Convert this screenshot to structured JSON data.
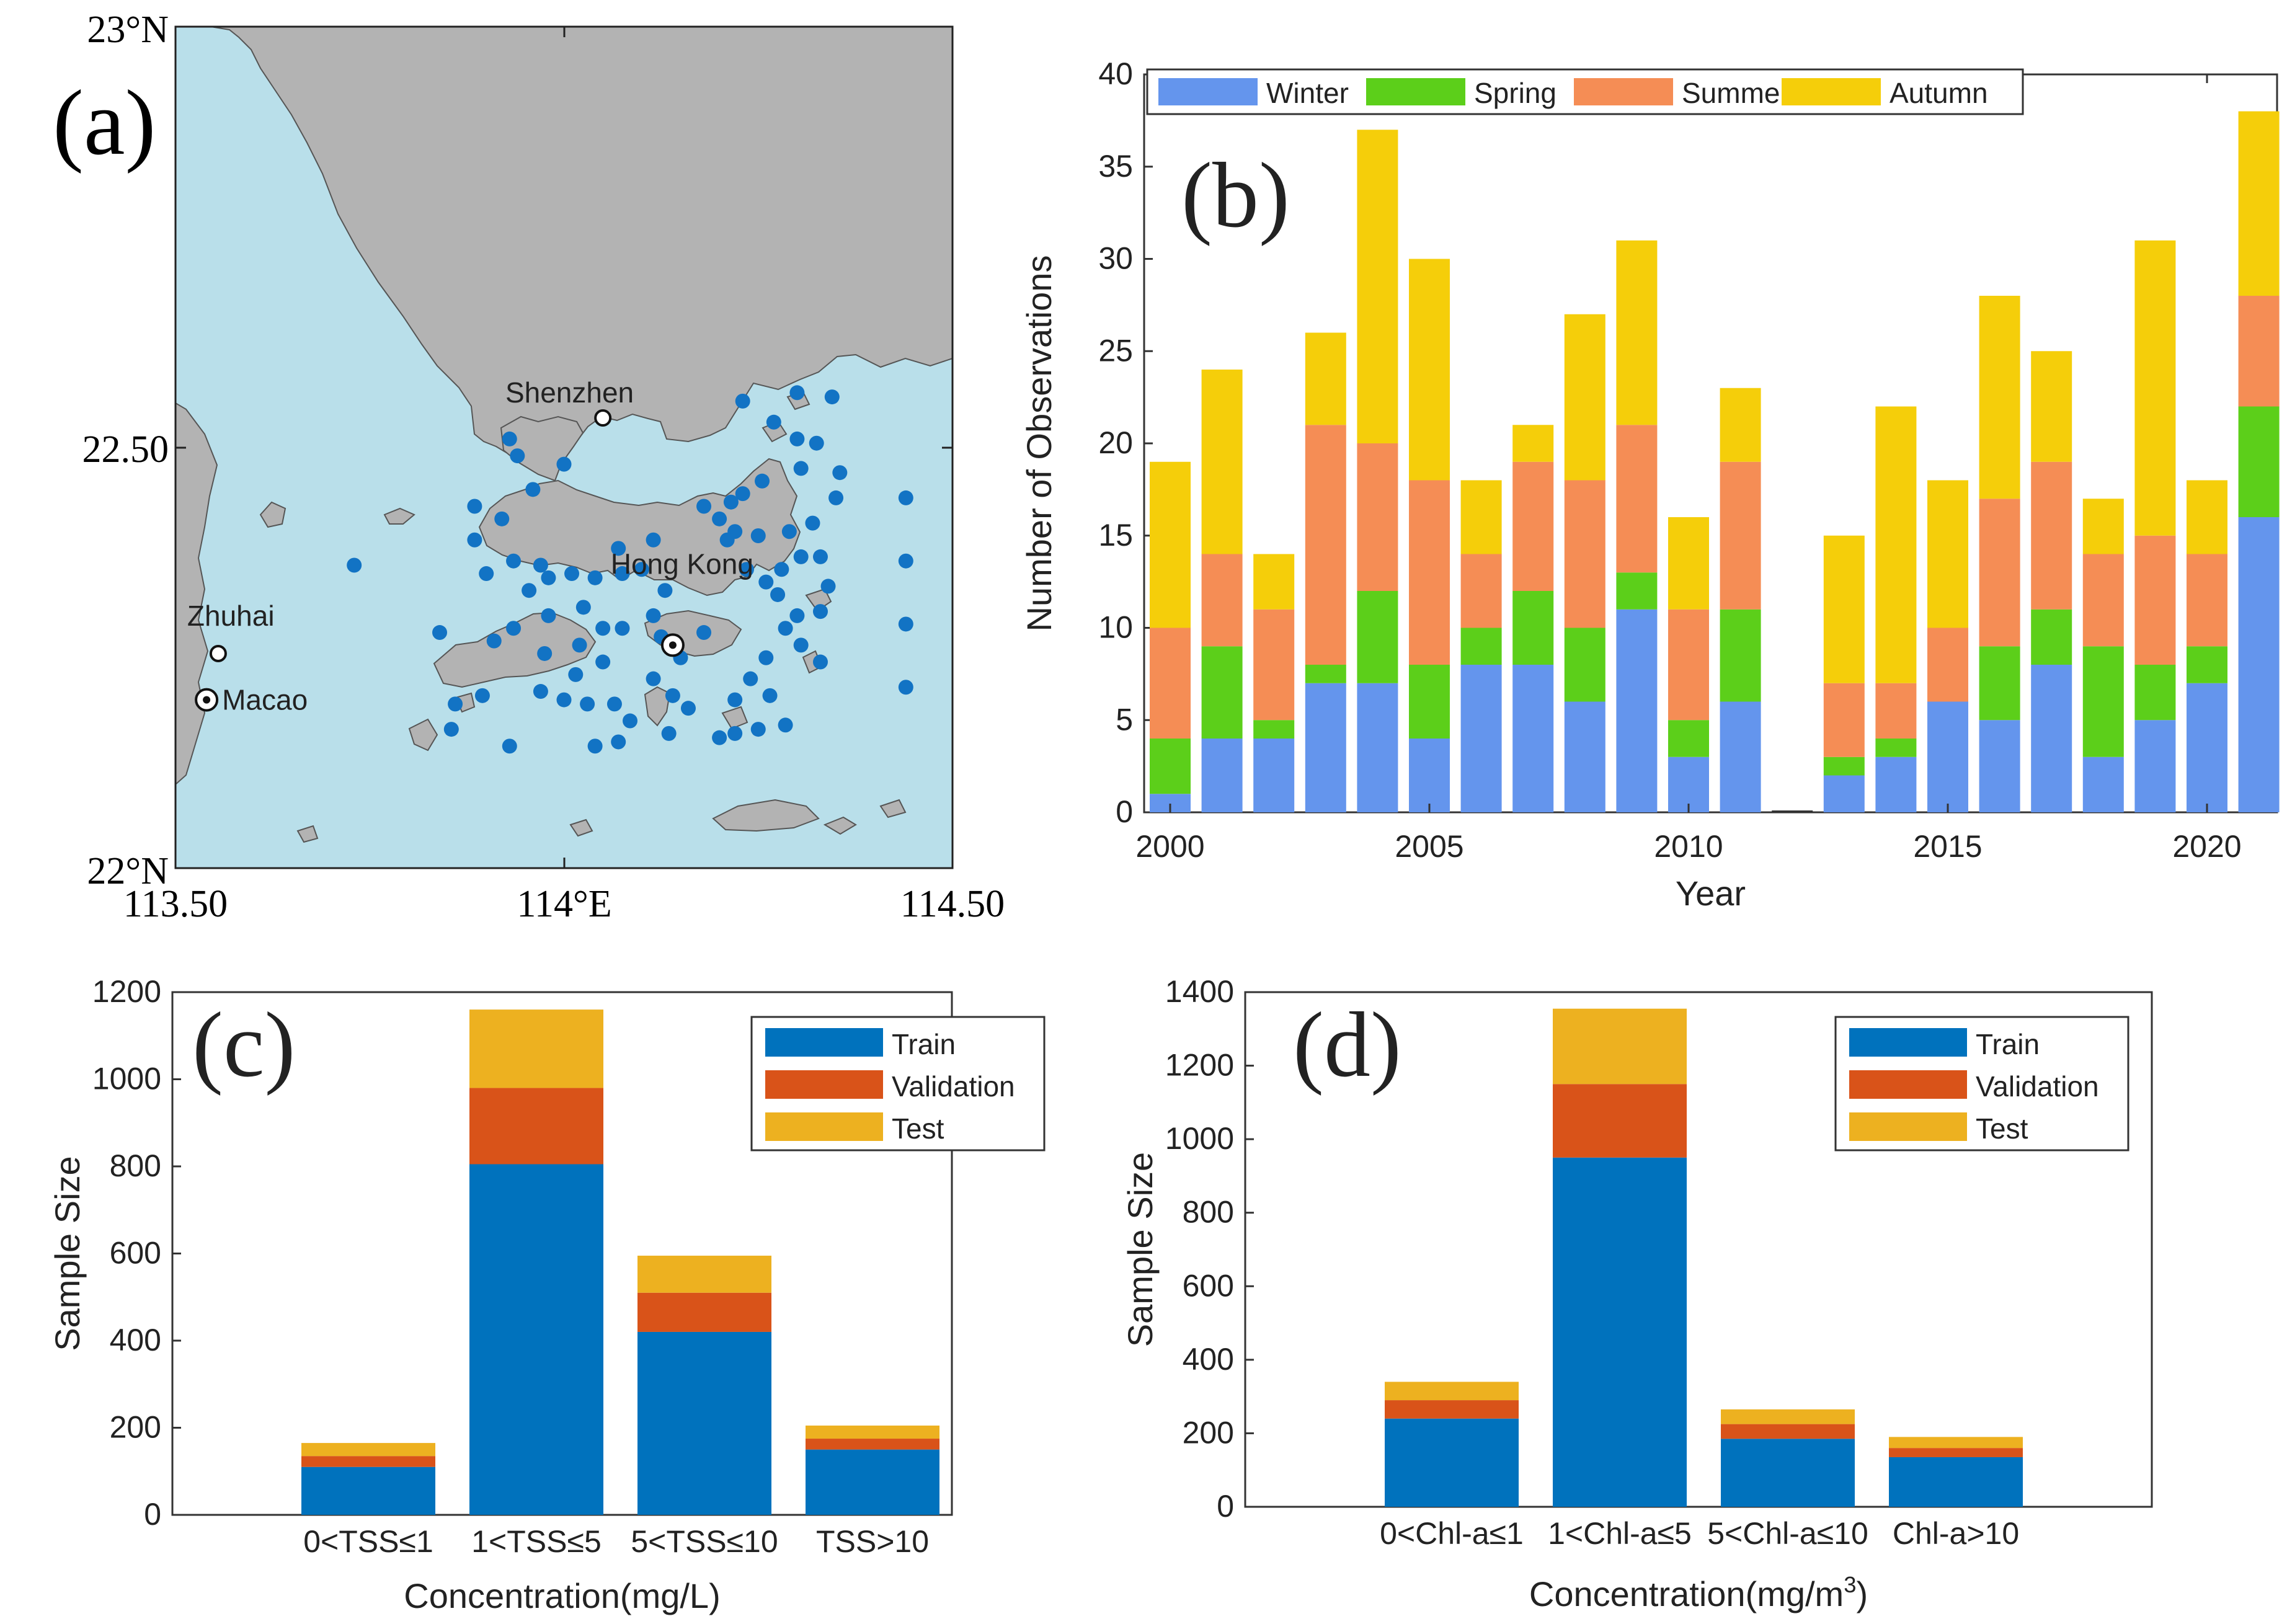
{
  "colors": {
    "winter": "#6495ED",
    "spring": "#5CCF1A",
    "summer": "#F58D55",
    "autumn": "#F5CE0A",
    "train": "#0072BD",
    "validation": "#D95319",
    "test": "#EDB120",
    "sea": "#B9DFEA",
    "land": "#B3B3B3",
    "station": "#1273C4"
  },
  "map": {
    "panel_label": "(a)",
    "lat_ticks": [
      "23°N",
      "22.50",
      "22°N"
    ],
    "lon_ticks": [
      "113.50",
      "114°E",
      "114.50"
    ],
    "lon_range": [
      113.5,
      114.5
    ],
    "lat_range": [
      22.0,
      23.0
    ],
    "cities": [
      {
        "name": "Shenzhen",
        "lon": 114.05,
        "lat": 22.535
      },
      {
        "name": "Hong Kong",
        "lon": 114.14,
        "lat": 22.265
      },
      {
        "name": "Zhuhai",
        "lon": 113.555,
        "lat": 22.255
      },
      {
        "name": "Macao",
        "lon": 113.54,
        "lat": 22.2
      }
    ],
    "stations": [
      [
        114.23,
        22.555
      ],
      [
        114.3,
        22.565
      ],
      [
        114.345,
        22.56
      ],
      [
        114.27,
        22.53
      ],
      [
        114.3,
        22.51
      ],
      [
        114.325,
        22.505
      ],
      [
        114.305,
        22.475
      ],
      [
        114.255,
        22.46
      ],
      [
        114.23,
        22.445
      ],
      [
        114.215,
        22.435
      ],
      [
        114.18,
        22.43
      ],
      [
        114.2,
        22.415
      ],
      [
        114.22,
        22.4
      ],
      [
        114.25,
        22.395
      ],
      [
        114.29,
        22.4
      ],
      [
        114.32,
        22.41
      ],
      [
        114.355,
        22.47
      ],
      [
        114.35,
        22.44
      ],
      [
        114.44,
        22.44
      ],
      [
        114.44,
        22.365
      ],
      [
        114.44,
        22.29
      ],
      [
        114.44,
        22.215
      ],
      [
        114.34,
        22.335
      ],
      [
        114.33,
        22.37
      ],
      [
        114.305,
        22.37
      ],
      [
        114.28,
        22.355
      ],
      [
        114.26,
        22.34
      ],
      [
        114.275,
        22.325
      ],
      [
        114.3,
        22.3
      ],
      [
        114.33,
        22.305
      ],
      [
        114.33,
        22.245
      ],
      [
        114.305,
        22.265
      ],
      [
        114.285,
        22.285
      ],
      [
        114.26,
        22.25
      ],
      [
        114.24,
        22.225
      ],
      [
        114.265,
        22.205
      ],
      [
        114.22,
        22.2
      ],
      [
        114.2,
        22.155
      ],
      [
        114.25,
        22.165
      ],
      [
        114.285,
        22.17
      ],
      [
        114.22,
        22.16
      ],
      [
        114.18,
        22.28
      ],
      [
        114.15,
        22.25
      ],
      [
        114.125,
        22.275
      ],
      [
        114.115,
        22.3
      ],
      [
        114.13,
        22.33
      ],
      [
        114.1,
        22.355
      ],
      [
        114.075,
        22.35
      ],
      [
        114.04,
        22.345
      ],
      [
        114.025,
        22.31
      ],
      [
        114.05,
        22.285
      ],
      [
        114.075,
        22.285
      ],
      [
        114.02,
        22.265
      ],
      [
        114.015,
        22.23
      ],
      [
        114.0,
        22.2
      ],
      [
        114.03,
        22.195
      ],
      [
        114.05,
        22.245
      ],
      [
        114.065,
        22.195
      ],
      [
        114.115,
        22.225
      ],
      [
        114.14,
        22.205
      ],
      [
        114.16,
        22.19
      ],
      [
        114.085,
        22.175
      ],
      [
        114.07,
        22.15
      ],
      [
        114.135,
        22.16
      ],
      [
        113.98,
        22.3
      ],
      [
        113.955,
        22.33
      ],
      [
        113.935,
        22.365
      ],
      [
        113.97,
        22.36
      ],
      [
        113.98,
        22.345
      ],
      [
        113.9,
        22.35
      ],
      [
        113.885,
        22.39
      ],
      [
        113.92,
        22.415
      ],
      [
        113.885,
        22.43
      ],
      [
        113.96,
        22.45
      ],
      [
        114.0,
        22.48
      ],
      [
        113.94,
        22.49
      ],
      [
        113.93,
        22.51
      ],
      [
        114.01,
        22.35
      ],
      [
        113.84,
        22.28
      ],
      [
        113.91,
        22.27
      ],
      [
        113.935,
        22.285
      ],
      [
        113.97,
        22.21
      ],
      [
        113.975,
        22.255
      ],
      [
        113.86,
        22.195
      ],
      [
        113.895,
        22.205
      ],
      [
        113.855,
        22.165
      ],
      [
        113.93,
        22.145
      ],
      [
        114.04,
        22.145
      ],
      [
        113.73,
        22.36
      ],
      [
        114.21,
        22.39
      ],
      [
        114.235,
        22.355
      ],
      [
        114.07,
        22.38
      ],
      [
        114.115,
        22.39
      ]
    ]
  },
  "chart_data": [
    {
      "panel": "(b)",
      "type": "bar",
      "stacked": true,
      "xlabel": "Year",
      "ylabel": "Number of Observations",
      "ylim": [
        0,
        40
      ],
      "yticks": [
        "0",
        "5",
        "10",
        "15",
        "20",
        "25",
        "30",
        "35",
        "40"
      ],
      "xticks": [
        "2000",
        "2005",
        "2010",
        "2015",
        "2020"
      ],
      "legend_position": "top",
      "categories": [
        "2000",
        "2001",
        "2002",
        "2003",
        "2004",
        "2005",
        "2006",
        "2007",
        "2008",
        "2009",
        "2010",
        "2011",
        "2012",
        "2013",
        "2014",
        "2015",
        "2016",
        "2017",
        "2018",
        "2019",
        "2020",
        "2021"
      ],
      "series": [
        {
          "name": "Winter",
          "values": [
            1,
            4,
            4,
            7,
            7,
            4,
            8,
            8,
            6,
            11,
            3,
            6,
            0,
            2,
            3,
            6,
            5,
            8,
            3,
            5,
            7,
            16
          ]
        },
        {
          "name": "Spring",
          "values": [
            3,
            5,
            1,
            1,
            5,
            4,
            2,
            4,
            4,
            2,
            2,
            5,
            0,
            1,
            1,
            0,
            4,
            3,
            6,
            3,
            2,
            6
          ]
        },
        {
          "name": "Summer",
          "values": [
            6,
            5,
            6,
            13,
            8,
            10,
            4,
            7,
            8,
            8,
            6,
            8,
            0,
            4,
            3,
            4,
            8,
            8,
            5,
            7,
            5,
            6
          ]
        },
        {
          "name": "Autumn",
          "values": [
            9,
            10,
            3,
            5,
            17,
            12,
            4,
            2,
            9,
            10,
            5,
            4,
            0,
            8,
            15,
            8,
            11,
            6,
            3,
            16,
            4,
            10
          ]
        }
      ]
    },
    {
      "panel": "(c)",
      "type": "bar",
      "stacked": true,
      "xlabel": "Concentration(mg/L)",
      "ylabel": "Sample Size",
      "ylim": [
        0,
        1200
      ],
      "yticks": [
        "0",
        "200",
        "400",
        "600",
        "800",
        "1000",
        "1200"
      ],
      "legend_position": "top-right",
      "categories": [
        "0<TSS≤1",
        "1<TSS≤5",
        "5<TSS≤10",
        "TSS>10"
      ],
      "series": [
        {
          "name": "Train",
          "values": [
            110,
            805,
            420,
            150
          ]
        },
        {
          "name": "Validation",
          "values": [
            25,
            175,
            90,
            25
          ]
        },
        {
          "name": "Test",
          "values": [
            30,
            180,
            85,
            30
          ]
        }
      ]
    },
    {
      "panel": "(d)",
      "type": "bar",
      "stacked": true,
      "xlabel": "Concentration(mg/m",
      "xlabel_sup": "3",
      "xlabel_end": ")",
      "ylabel": "Sample Size",
      "ylim": [
        0,
        1400
      ],
      "yticks": [
        "0",
        "200",
        "400",
        "600",
        "800",
        "1000",
        "1200",
        "1400"
      ],
      "legend_position": "top-right",
      "categories": [
        "0<Chl-a≤1",
        "1<Chl-a≤5",
        "5<Chl-a≤10",
        "Chl-a>10"
      ],
      "series": [
        {
          "name": "Train",
          "values": [
            240,
            950,
            185,
            135
          ]
        },
        {
          "name": "Validation",
          "values": [
            50,
            200,
            40,
            25
          ]
        },
        {
          "name": "Test",
          "values": [
            50,
            205,
            40,
            30
          ]
        }
      ]
    }
  ]
}
